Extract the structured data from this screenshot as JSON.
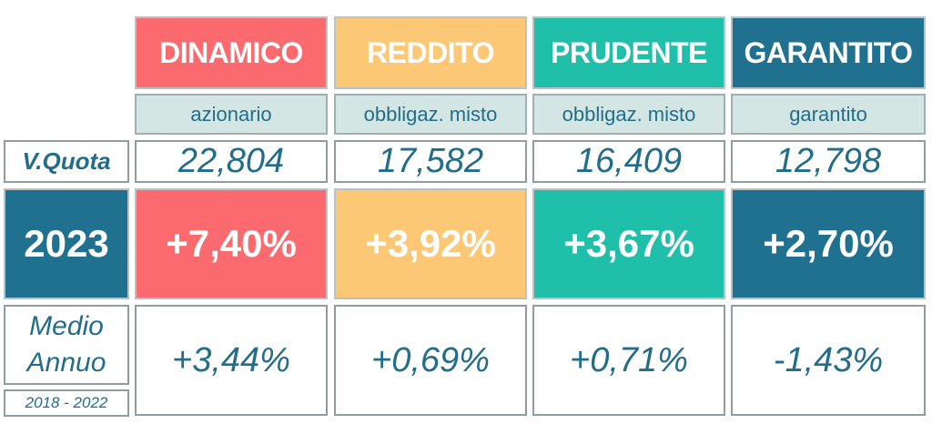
{
  "colors": {
    "dinamico": "#fa6a6e",
    "reddito": "#fcc876",
    "prudente": "#1fbfa9",
    "garantito": "#20708f",
    "text": "#216d8a"
  },
  "funds": [
    {
      "name": "DINAMICO",
      "type": "azionario",
      "quota": "22,804",
      "return_2023": "+7,40%",
      "avg_annual": "+3,44%"
    },
    {
      "name": "REDDITO",
      "type": "obbligaz. misto",
      "quota": "17,582",
      "return_2023": "+3,92%",
      "avg_annual": "+0,69%"
    },
    {
      "name": "PRUDENTE",
      "type": "obbligaz. misto",
      "quota": "16,409",
      "return_2023": "+3,67%",
      "avg_annual": "+0,71%"
    },
    {
      "name": "GARANTITO",
      "type": "garantito",
      "quota": "12,798",
      "return_2023": "+2,70%",
      "avg_annual": "-1,43%"
    }
  ],
  "labels": {
    "quota": "V.Quota",
    "year": "2023",
    "medio_line1": "Medio",
    "medio_line2": "Annuo",
    "range": "2018 - 2022"
  }
}
